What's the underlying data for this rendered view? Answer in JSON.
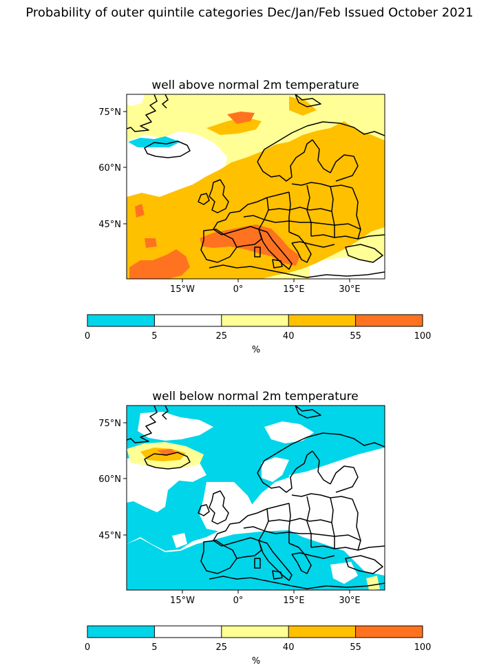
{
  "figure": {
    "title": "Probability of outer quintile categories Dec/Jan/Feb Issued October 2021"
  },
  "colors": {
    "bin_0_5": "#00d5ea",
    "bin_5_25": "#ffffff",
    "bin_25_40": "#ffff96",
    "bin_40_55": "#ffc000",
    "bin_55_100": "#ff7320",
    "coast": "#000000"
  },
  "panels": [
    {
      "title": "well above normal 2m temperature",
      "lat_labels": [
        "75°N",
        "60°N",
        "45°N"
      ],
      "lon_labels": [
        "15°W",
        "0°",
        "15°E",
        "30°E"
      ],
      "colorbar": {
        "ticks": [
          "0",
          "5",
          "25",
          "40",
          "55",
          "100"
        ],
        "unit": "%"
      }
    },
    {
      "title": "well below normal 2m temperature",
      "lat_labels": [
        "75°N",
        "60°N",
        "45°N"
      ],
      "lon_labels": [
        "15°W",
        "0°",
        "15°E",
        "30°E"
      ],
      "colorbar": {
        "ticks": [
          "0",
          "5",
          "25",
          "40",
          "55",
          "100"
        ],
        "unit": "%"
      }
    }
  ]
}
